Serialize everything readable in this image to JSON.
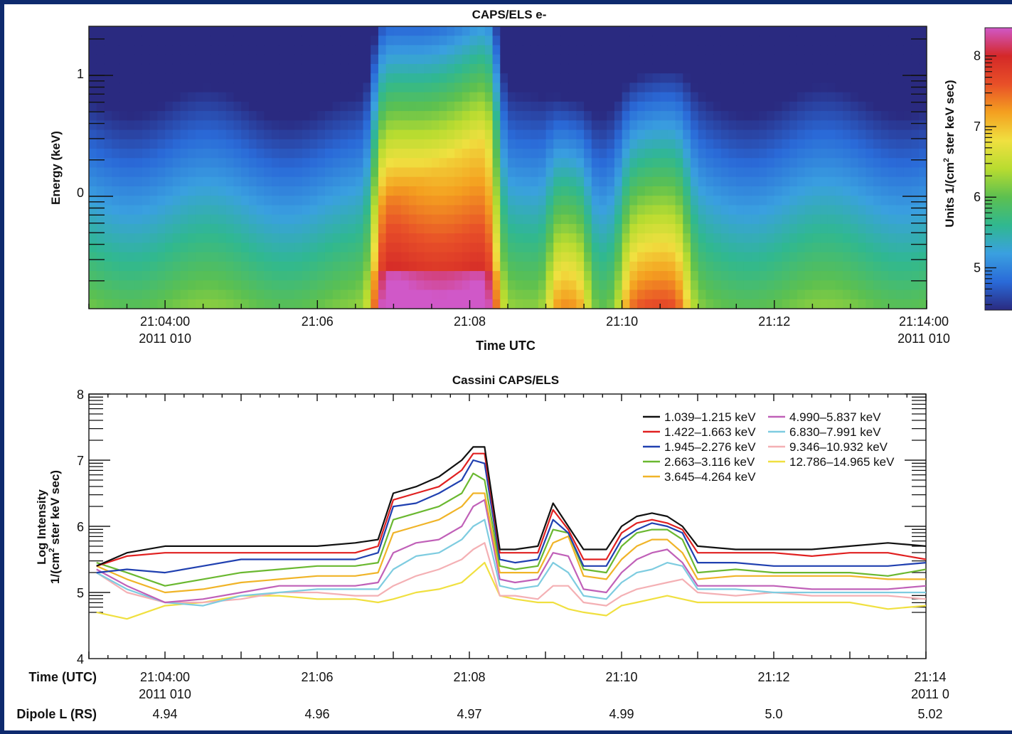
{
  "spectrogram": {
    "title": "CAPS/ELS e-",
    "ylabel": "Energy (keV)",
    "xlabel": "Time UTC",
    "y_ticks": [
      "1",
      "0"
    ],
    "x_ticks": [
      {
        "t": 4,
        "label": "21:04:00",
        "sub": "2011 010"
      },
      {
        "t": 6,
        "label": "21:06",
        "sub": ""
      },
      {
        "t": 8,
        "label": "21:08",
        "sub": ""
      },
      {
        "t": 10,
        "label": "21:10",
        "sub": ""
      },
      {
        "t": 12,
        "label": "21:12",
        "sub": ""
      },
      {
        "t": 14,
        "label": "21:14:00",
        "sub": "2011 010"
      }
    ],
    "colorbar": {
      "label_prefix": "Units 1/(cm",
      "label_sup": "2",
      "label_suffix": " ster keV sec)",
      "range": [
        4.4,
        8.4
      ],
      "ticks": [
        "8",
        "7",
        "6",
        "5"
      ],
      "colors": [
        "#2a2a80",
        "#2a6ad8",
        "#3aa0e0",
        "#30b890",
        "#5cc050",
        "#b8dc30",
        "#f0e040",
        "#f4a020",
        "#e85028",
        "#d42828",
        "#d058c8"
      ]
    }
  },
  "chart_data": {
    "type": "line",
    "title": "Cassini CAPS/ELS",
    "ylabel_line1": "Log Intensity",
    "ylabel_line2_prefix": "1/(cm",
    "ylabel_line2_sup": "2",
    "ylabel_line2_suffix": " ster keV sec)",
    "ylim": [
      4,
      8
    ],
    "y_ticks": [
      "8",
      "7",
      "6",
      "5",
      "4"
    ],
    "xlim": [
      3,
      14
    ],
    "x_axis_label": "Time (UTC)",
    "x_ticks": [
      {
        "t": 4,
        "label": "21:04:00",
        "sub": "2011 010",
        "dipole": "4.94"
      },
      {
        "t": 6,
        "label": "21:06",
        "sub": "",
        "dipole": "4.96"
      },
      {
        "t": 8,
        "label": "21:08",
        "sub": "",
        "dipole": "4.97"
      },
      {
        "t": 10,
        "label": "21:10",
        "sub": "",
        "dipole": "4.99"
      },
      {
        "t": 12,
        "label": "21:12",
        "sub": "",
        "dipole": "5.0"
      },
      {
        "t": 14,
        "label": "21:14",
        "sub": "2011 0",
        "dipole": "5.02"
      }
    ],
    "dipole_label": "Dipole L (RS)",
    "legend_position": "top-right",
    "x": [
      3.1,
      3.5,
      4.0,
      4.5,
      5.0,
      5.5,
      6.0,
      6.5,
      6.8,
      7.0,
      7.3,
      7.6,
      7.9,
      8.05,
      8.2,
      8.4,
      8.6,
      8.9,
      9.1,
      9.3,
      9.5,
      9.8,
      10.0,
      10.2,
      10.4,
      10.6,
      10.8,
      11.0,
      11.5,
      12.0,
      12.5,
      13.0,
      13.5,
      14.0
    ],
    "series": [
      {
        "name": "1.039–1.215 keV",
        "color": "#111111",
        "values": [
          5.4,
          5.6,
          5.7,
          5.7,
          5.7,
          5.7,
          5.7,
          5.75,
          5.8,
          6.5,
          6.6,
          6.75,
          7.0,
          7.2,
          7.2,
          5.65,
          5.65,
          5.7,
          6.35,
          6.0,
          5.65,
          5.65,
          6.0,
          6.15,
          6.2,
          6.15,
          6.0,
          5.7,
          5.65,
          5.65,
          5.65,
          5.7,
          5.75,
          5.7
        ]
      },
      {
        "name": "1.422–1.663 keV",
        "color": "#e02020",
        "values": [
          5.4,
          5.55,
          5.6,
          5.6,
          5.6,
          5.6,
          5.6,
          5.6,
          5.7,
          6.4,
          6.5,
          6.6,
          6.85,
          7.1,
          7.1,
          5.6,
          5.6,
          5.6,
          6.25,
          5.95,
          5.5,
          5.5,
          5.9,
          6.05,
          6.1,
          6.05,
          5.95,
          5.6,
          5.6,
          5.6,
          5.55,
          5.6,
          5.6,
          5.5
        ]
      },
      {
        "name": "1.945–2.276 keV",
        "color": "#2040b0",
        "values": [
          5.3,
          5.35,
          5.3,
          5.4,
          5.5,
          5.5,
          5.5,
          5.5,
          5.6,
          6.3,
          6.35,
          6.5,
          6.7,
          7.0,
          6.95,
          5.5,
          5.45,
          5.5,
          6.1,
          5.9,
          5.4,
          5.4,
          5.8,
          5.95,
          6.05,
          6.0,
          5.9,
          5.45,
          5.45,
          5.4,
          5.4,
          5.4,
          5.4,
          5.45
        ]
      },
      {
        "name": "2.663–3.116 keV",
        "color": "#6ab830",
        "values": [
          5.45,
          5.3,
          5.1,
          5.2,
          5.3,
          5.35,
          5.4,
          5.4,
          5.45,
          6.1,
          6.2,
          6.3,
          6.5,
          6.8,
          6.7,
          5.4,
          5.35,
          5.4,
          5.95,
          5.9,
          5.35,
          5.3,
          5.7,
          5.9,
          5.95,
          5.95,
          5.8,
          5.3,
          5.35,
          5.3,
          5.3,
          5.3,
          5.25,
          5.35
        ]
      },
      {
        "name": "3.645–4.264 keV",
        "color": "#f0b428",
        "values": [
          5.4,
          5.2,
          5.0,
          5.05,
          5.15,
          5.2,
          5.25,
          5.25,
          5.3,
          5.9,
          6.0,
          6.1,
          6.3,
          6.5,
          6.5,
          5.3,
          5.3,
          5.3,
          5.75,
          5.85,
          5.25,
          5.2,
          5.5,
          5.7,
          5.8,
          5.8,
          5.6,
          5.2,
          5.25,
          5.25,
          5.25,
          5.25,
          5.2,
          5.2
        ]
      },
      {
        "name": "4.990–5.837 keV",
        "color": "#c060b8",
        "values": [
          5.35,
          5.1,
          4.85,
          4.9,
          5.0,
          5.1,
          5.1,
          5.1,
          5.15,
          5.6,
          5.75,
          5.8,
          6.0,
          6.3,
          6.4,
          5.2,
          5.15,
          5.2,
          5.6,
          5.55,
          5.05,
          5.0,
          5.3,
          5.5,
          5.6,
          5.65,
          5.45,
          5.1,
          5.1,
          5.1,
          5.05,
          5.05,
          5.05,
          5.1
        ]
      },
      {
        "name": "6.830–7.991 keV",
        "color": "#7ecce0",
        "values": [
          5.3,
          5.05,
          4.85,
          4.8,
          4.95,
          5.0,
          5.05,
          5.05,
          5.05,
          5.35,
          5.55,
          5.6,
          5.8,
          6.0,
          6.1,
          5.1,
          5.05,
          5.1,
          5.45,
          5.3,
          4.95,
          4.9,
          5.15,
          5.3,
          5.35,
          5.45,
          5.4,
          5.05,
          5.05,
          5.0,
          5.0,
          5.0,
          5.0,
          5.0
        ]
      },
      {
        "name": "9.346–10.932 keV",
        "color": "#f4b0b4",
        "values": [
          5.3,
          5.0,
          4.85,
          4.85,
          4.9,
          5.0,
          5.0,
          4.95,
          4.95,
          5.1,
          5.25,
          5.35,
          5.5,
          5.65,
          5.75,
          4.95,
          4.95,
          4.9,
          5.1,
          5.1,
          4.85,
          4.8,
          4.95,
          5.05,
          5.1,
          5.15,
          5.2,
          5.0,
          4.95,
          5.0,
          4.95,
          4.95,
          4.95,
          4.9
        ]
      },
      {
        "name": "12.786–14.965 keV",
        "color": "#f0e040",
        "values": [
          4.7,
          4.6,
          4.8,
          4.85,
          4.95,
          4.95,
          4.9,
          4.9,
          4.85,
          4.9,
          5.0,
          5.05,
          5.15,
          5.3,
          5.45,
          4.95,
          4.9,
          4.85,
          4.85,
          4.75,
          4.7,
          4.65,
          4.8,
          4.85,
          4.9,
          4.95,
          4.9,
          4.85,
          4.85,
          4.85,
          4.85,
          4.85,
          4.75,
          4.8
        ]
      }
    ]
  }
}
